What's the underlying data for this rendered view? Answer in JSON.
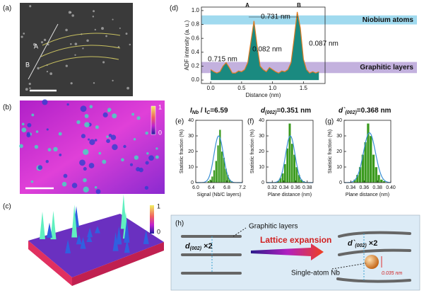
{
  "panel_labels": [
    "(a)",
    "(b)",
    "(c)",
    "(d)",
    "(e)",
    "(f)",
    "(g)",
    "(h)"
  ],
  "image_a": {
    "markers": [
      "A",
      "B"
    ]
  },
  "colorbar_b": {
    "top": 1,
    "bottom": 0
  },
  "colorbar_c": {
    "top": 1,
    "bottom": 0
  },
  "chart_data": [
    {
      "type": "line",
      "xlabel": "Distance (nm)",
      "ylabel": "ADF intensity (a. u.)",
      "x": [
        0,
        0.05,
        0.1,
        0.15,
        0.2,
        0.25,
        0.3,
        0.35,
        0.4,
        0.45,
        0.5,
        0.55,
        0.6,
        0.65,
        0.7,
        0.75,
        0.8,
        0.85,
        0.9,
        0.95,
        1.0,
        1.05,
        1.1,
        1.15,
        1.2,
        1.25,
        1.3,
        1.35,
        1.4,
        1.45,
        1.5,
        1.55,
        1.6,
        1.65,
        1.7,
        1.75
      ],
      "values": [
        0.15,
        0.12,
        0.1,
        0.12,
        0.2,
        0.25,
        0.18,
        0.1,
        0.1,
        0.13,
        0.12,
        0.15,
        0.25,
        0.55,
        0.85,
        0.5,
        0.2,
        0.15,
        0.12,
        0.18,
        0.15,
        0.12,
        0.1,
        0.13,
        0.12,
        0.15,
        0.25,
        0.6,
        0.98,
        0.75,
        0.3,
        0.15,
        0.1,
        0.12,
        0.1,
        0.12
      ],
      "color": "#1a8a80",
      "line_color": "#e07a20",
      "xlim": [
        -0.15,
        1.85
      ],
      "ylim": [
        -0.05,
        1.05
      ],
      "xticks": [
        {
          "value": 0,
          "label": "0.0"
        },
        0.5,
        {
          "value": 1,
          "label": "1.0"
        },
        1.5
      ],
      "yticks": [
        {
          "value": 0,
          "label": "0.0"
        },
        0.2,
        0.4,
        0.6,
        0.8,
        {
          "value": 1,
          "label": "1.0"
        }
      ],
      "bands": [
        {
          "label": "Niobium atoms",
          "range": [
            0.8,
            0.93
          ],
          "color": "#8fd3ec"
        },
        {
          "label": "Graphitic layers",
          "range": [
            0.1,
            0.26
          ],
          "color": "#b9a3d8"
        }
      ],
      "annotations": [
        "A",
        "B",
        "0.731 nm",
        "0.082 nm",
        "0.087 nm",
        "0.715 nm"
      ]
    },
    {
      "type": "histogram",
      "title_parts": [
        "I",
        "Nb",
        " / I",
        "C",
        "=6.59"
      ],
      "xlabel": "Signal (Nb/C layers)",
      "ylabel": "Statistic fraction (%)",
      "bins": [
        6.3,
        6.35,
        6.4,
        6.45,
        6.5,
        6.55,
        6.6,
        6.65,
        6.7,
        6.75,
        6.8,
        6.85,
        6.9,
        6.95
      ],
      "values": [
        1,
        2,
        4,
        8,
        14,
        24,
        34,
        20,
        16,
        9,
        5,
        2,
        1
      ],
      "color": "#3a9a1e",
      "fit": {
        "mean": 6.59,
        "sd": 0.12,
        "peak": 30,
        "color": "#3a8fd6"
      },
      "xlim": [
        6.0,
        7.2
      ],
      "ylim": [
        0,
        40
      ],
      "xticks": [
        {
          "value": 6.0,
          "label": "6.0"
        },
        6.4,
        6.8,
        7.2
      ],
      "yticks": [
        0,
        10,
        20,
        30,
        40
      ]
    },
    {
      "type": "histogram",
      "title_parts": [
        "d",
        "(002)",
        "=0.351 nm"
      ],
      "xlabel": "Plane distance (nm)",
      "ylabel": "Statistic fraction (%)",
      "bins": [
        0.328,
        0.332,
        0.336,
        0.34,
        0.344,
        0.348,
        0.352,
        0.356,
        0.36,
        0.364,
        0.368,
        0.372,
        0.376
      ],
      "values": [
        1,
        3,
        6,
        12,
        22,
        38,
        25,
        18,
        10,
        5,
        2,
        1
      ],
      "color": "#3a9a1e",
      "fit": {
        "mean": 0.351,
        "sd": 0.008,
        "peak": 30,
        "color": "#3a8fd6"
      },
      "xlim": [
        0.31,
        0.39
      ],
      "ylim": [
        0,
        40
      ],
      "xticks": [
        0.32,
        0.34,
        0.36,
        0.38
      ],
      "yticks": [
        0,
        10,
        20,
        30,
        40
      ]
    },
    {
      "type": "histogram",
      "title_parts": [
        "d`",
        "(002)",
        "=0.368 nm"
      ],
      "xlabel": "Plane distance (nm)",
      "ylabel": "Statistic fraction (%)",
      "bins": [
        0.344,
        0.348,
        0.352,
        0.356,
        0.36,
        0.364,
        0.368,
        0.372,
        0.376,
        0.38,
        0.384,
        0.388,
        0.392
      ],
      "values": [
        2,
        5,
        10,
        18,
        26,
        38,
        30,
        18,
        10,
        5,
        2,
        1
      ],
      "color": "#3a9a1e",
      "fit": {
        "mean": 0.368,
        "sd": 0.009,
        "peak": 32,
        "color": "#3a8fd6"
      },
      "xlim": [
        0.33,
        0.4
      ],
      "ylim": [
        0,
        40
      ],
      "xticks": [
        0.34,
        0.36,
        0.38,
        {
          "value": 0.4,
          "label": "0.40"
        }
      ],
      "yticks": [
        0,
        10,
        20,
        30,
        40
      ]
    }
  ],
  "diagram_h": {
    "graphitic_layers": "Graphitic layers",
    "d_left": [
      "d",
      "(002)",
      " ×2"
    ],
    "arrow": "Lattice expansion",
    "d_right": [
      "d`",
      "(002)",
      " ×2"
    ],
    "nb": "Single-atom Nb",
    "shift": "0.035 nm"
  }
}
